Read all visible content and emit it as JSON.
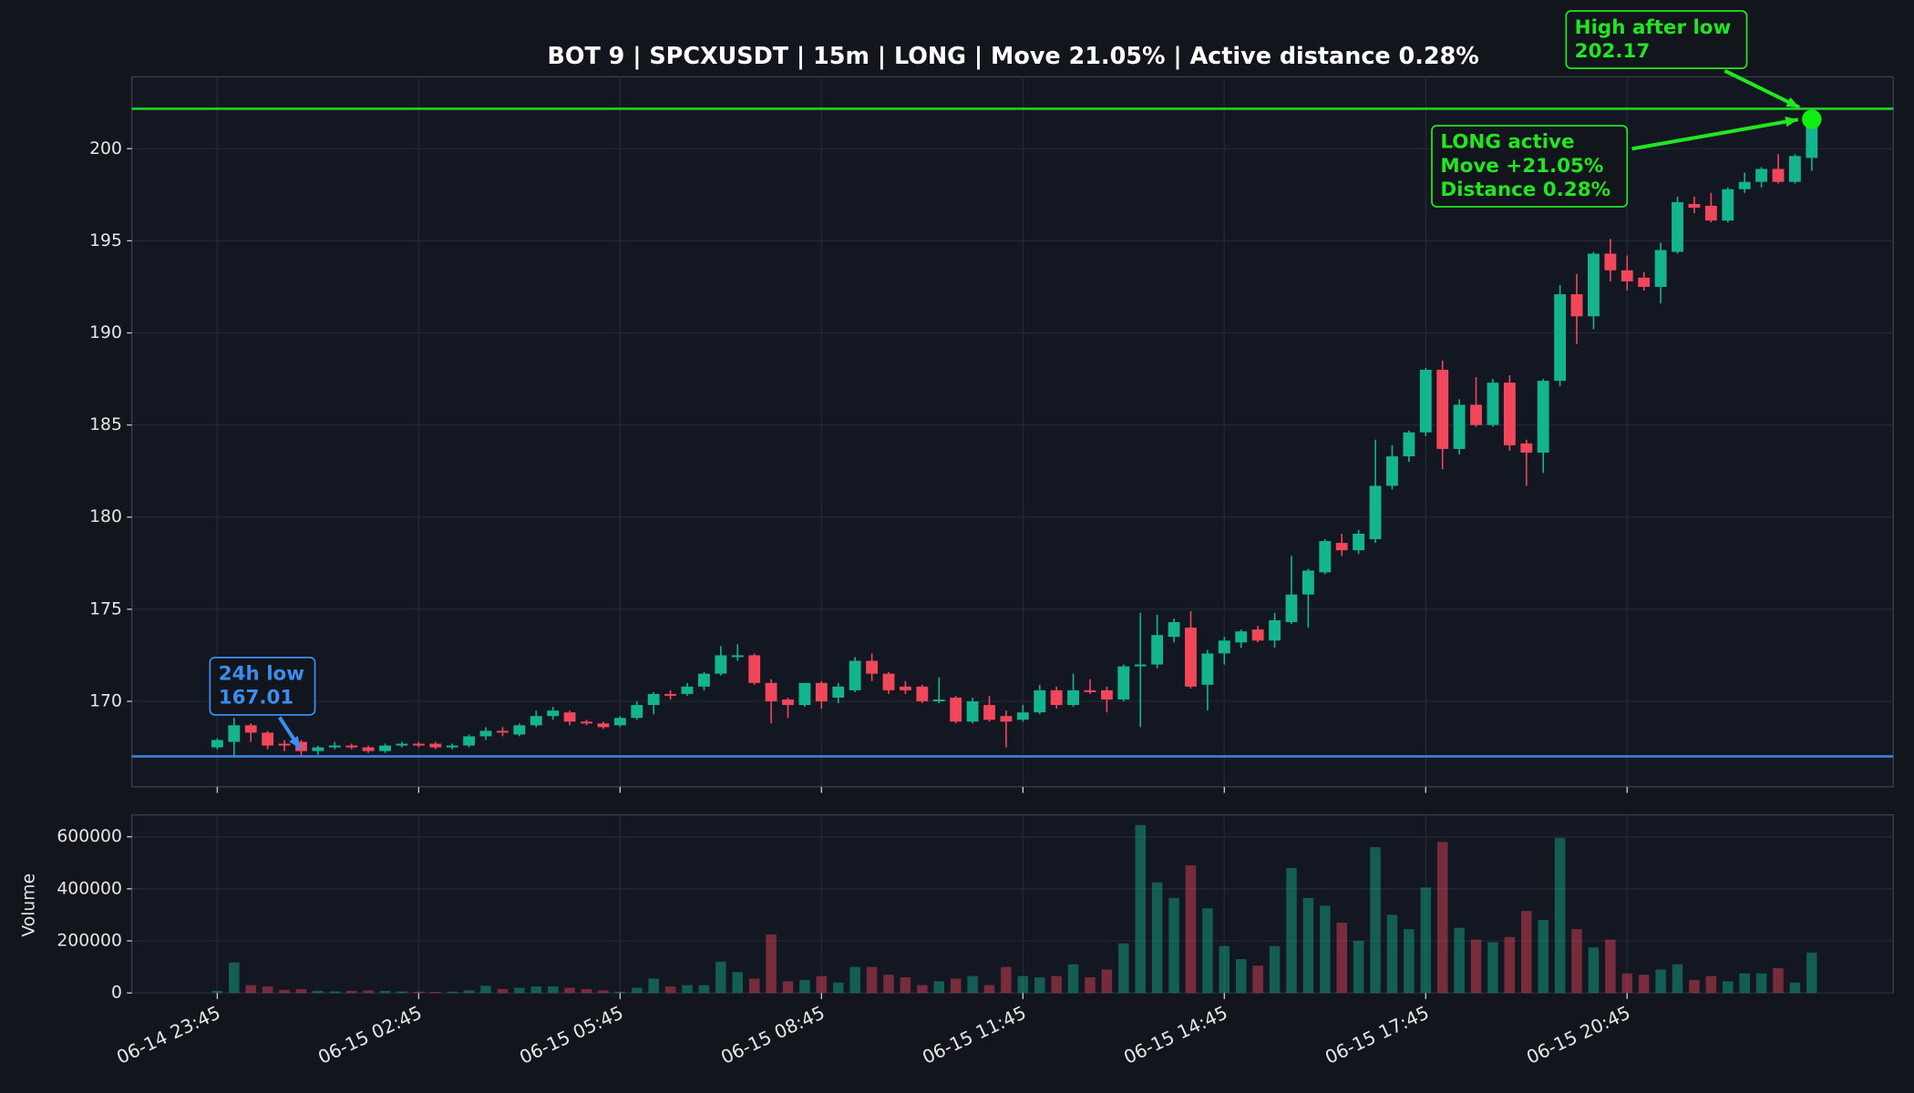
{
  "chart_data": {
    "type": "candlestick",
    "title": "BOT 9 | SPCXUSDT | 15m | LONG | Move 21.05% | Active distance 0.28%",
    "categories": [
      "06-14 23:45",
      null,
      null,
      null,
      null,
      null,
      null,
      null,
      null,
      null,
      null,
      null,
      "06-15 02:45",
      null,
      null,
      null,
      null,
      null,
      null,
      null,
      null,
      null,
      null,
      null,
      "06-15 05:45",
      null,
      null,
      null,
      null,
      null,
      null,
      null,
      null,
      null,
      null,
      null,
      "06-15 08:45",
      null,
      null,
      null,
      null,
      null,
      null,
      null,
      null,
      null,
      null,
      null,
      "06-15 11:45",
      null,
      null,
      null,
      null,
      null,
      null,
      null,
      null,
      null,
      null,
      null,
      "06-15 14:45",
      null,
      null,
      null,
      null,
      null,
      null,
      null,
      null,
      null,
      null,
      null,
      "06-15 17:45",
      null,
      null,
      null,
      null,
      null,
      null,
      null,
      null,
      null,
      null,
      null,
      "06-15 20:45",
      null,
      null,
      null,
      null,
      null,
      null,
      null,
      null,
      null,
      null,
      null
    ],
    "open": [
      167.5,
      167.8,
      168.7,
      168.3,
      167.7,
      167.8,
      167.3,
      167.5,
      167.6,
      167.5,
      167.3,
      167.6,
      167.7,
      167.7,
      167.5,
      167.6,
      168.1,
      168.4,
      168.2,
      168.7,
      169.2,
      169.4,
      168.9,
      168.8,
      168.7,
      169.1,
      169.8,
      170.4,
      170.4,
      170.8,
      171.5,
      172.4,
      172.5,
      171.0,
      170.1,
      169.8,
      171.0,
      170.2,
      170.6,
      172.2,
      171.5,
      170.8,
      170.8,
      170.0,
      170.2,
      168.9,
      169.8,
      169.2,
      169.0,
      169.4,
      170.6,
      169.8,
      170.6,
      170.6,
      170.1,
      171.9,
      172.0,
      173.5,
      174.0,
      170.9,
      172.6,
      173.2,
      173.9,
      173.3,
      174.3,
      175.8,
      177.0,
      178.6,
      178.2,
      178.8,
      181.7,
      183.3,
      184.6,
      188.0,
      183.7,
      186.1,
      185.0,
      187.3,
      184.0,
      183.5,
      187.4,
      192.1,
      190.9,
      194.3,
      193.4,
      193.0,
      192.5,
      194.4,
      197.0,
      196.9,
      196.1,
      197.8,
      198.2,
      198.9,
      198.2,
      199.5
    ],
    "high": [
      168.0,
      169.1,
      168.8,
      168.4,
      167.9,
      167.9,
      167.6,
      167.8,
      167.7,
      167.6,
      167.7,
      167.8,
      167.8,
      167.8,
      167.7,
      168.2,
      168.6,
      168.6,
      168.8,
      169.5,
      169.7,
      169.5,
      169.0,
      168.9,
      169.2,
      170.0,
      170.5,
      170.6,
      171.0,
      171.6,
      173.0,
      173.1,
      172.6,
      171.2,
      170.2,
      171.0,
      171.1,
      171.0,
      172.4,
      172.6,
      171.6,
      171.1,
      170.9,
      171.3,
      170.3,
      170.2,
      170.3,
      169.5,
      169.8,
      170.9,
      170.8,
      171.5,
      171.2,
      170.8,
      172.0,
      174.8,
      174.7,
      174.5,
      174.9,
      172.8,
      173.5,
      173.9,
      174.1,
      174.8,
      177.9,
      177.2,
      178.8,
      179.1,
      179.3,
      184.2,
      183.9,
      184.7,
      188.1,
      188.5,
      186.4,
      187.6,
      187.5,
      187.7,
      184.2,
      187.5,
      192.6,
      193.2,
      194.4,
      195.1,
      194.2,
      193.3,
      194.9,
      197.4,
      197.4,
      197.6,
      197.9,
      198.7,
      199.0,
      199.7,
      199.7,
      202.17
    ],
    "low": [
      167.4,
      167.0,
      167.8,
      167.4,
      167.3,
      167.01,
      167.1,
      167.4,
      167.4,
      167.2,
      167.2,
      167.5,
      167.5,
      167.4,
      167.4,
      167.5,
      167.9,
      168.1,
      168.1,
      168.6,
      169.0,
      168.7,
      168.7,
      168.5,
      168.6,
      169.0,
      169.3,
      170.1,
      170.3,
      170.6,
      171.4,
      172.2,
      170.9,
      168.8,
      169.1,
      169.7,
      169.6,
      169.9,
      170.5,
      171.1,
      170.4,
      170.4,
      169.9,
      169.9,
      168.8,
      168.8,
      168.9,
      167.5,
      168.9,
      169.3,
      169.6,
      169.7,
      170.4,
      169.4,
      170.0,
      168.6,
      171.8,
      173.2,
      170.7,
      169.5,
      172.0,
      172.9,
      173.2,
      172.9,
      174.2,
      174.0,
      176.9,
      177.9,
      178.0,
      178.6,
      181.5,
      183.0,
      184.4,
      182.6,
      183.4,
      184.9,
      184.9,
      183.6,
      181.7,
      182.4,
      187.1,
      189.4,
      190.2,
      192.8,
      192.3,
      192.3,
      191.6,
      194.3,
      196.5,
      196.0,
      196.0,
      197.6,
      197.9,
      198.1,
      198.1,
      198.8
    ],
    "close": [
      167.9,
      168.7,
      168.3,
      167.6,
      167.6,
      167.3,
      167.5,
      167.6,
      167.5,
      167.3,
      167.6,
      167.7,
      167.6,
      167.5,
      167.6,
      168.1,
      168.4,
      168.3,
      168.7,
      169.2,
      169.5,
      168.9,
      168.8,
      168.6,
      169.1,
      169.8,
      170.4,
      170.3,
      170.8,
      171.5,
      172.5,
      172.5,
      171.0,
      170.0,
      169.8,
      171.0,
      170.0,
      170.8,
      172.2,
      171.5,
      170.6,
      170.6,
      170.0,
      170.1,
      168.9,
      170.0,
      169.0,
      168.9,
      169.4,
      170.6,
      169.8,
      170.6,
      170.5,
      170.1,
      171.9,
      172.0,
      173.6,
      174.3,
      170.8,
      172.6,
      173.3,
      173.8,
      173.3,
      174.4,
      175.8,
      177.1,
      178.7,
      178.2,
      179.1,
      181.7,
      183.3,
      184.6,
      188.0,
      183.7,
      186.1,
      185.0,
      187.3,
      183.9,
      183.5,
      187.4,
      192.1,
      190.9,
      194.3,
      193.4,
      192.8,
      192.5,
      194.5,
      197.1,
      196.8,
      196.1,
      197.8,
      198.2,
      198.9,
      198.2,
      199.6,
      201.6
    ],
    "volume": [
      8000,
      117000,
      30000,
      25000,
      12000,
      15000,
      8000,
      6000,
      8000,
      10000,
      8000,
      6000,
      5000,
      4000,
      5000,
      10000,
      28000,
      15000,
      20000,
      25000,
      25000,
      20000,
      15000,
      10000,
      5000,
      20000,
      55000,
      25000,
      30000,
      30000,
      120000,
      80000,
      55000,
      225000,
      45000,
      50000,
      65000,
      40000,
      100000,
      100000,
      70000,
      60000,
      30000,
      45000,
      55000,
      65000,
      30000,
      100000,
      65000,
      60000,
      65000,
      110000,
      60000,
      90000,
      190000,
      645000,
      425000,
      365000,
      490000,
      325000,
      180000,
      130000,
      105000,
      180000,
      480000,
      365000,
      335000,
      270000,
      200000,
      560000,
      300000,
      245000,
      405000,
      580000,
      250000,
      205000,
      195000,
      215000,
      315000,
      280000,
      595000,
      245000,
      175000,
      205000,
      75000,
      70000,
      90000,
      110000,
      50000,
      65000,
      45000,
      75000,
      75000,
      95000,
      40000,
      155000
    ],
    "up_color": "#13b48e",
    "down_color": "#f2475b",
    "ylim": [
      165.36,
      203.9
    ],
    "yticks": [
      170,
      175,
      180,
      185,
      190,
      195,
      200
    ],
    "volume_ylabel": "Volume",
    "volume_ylim": [
      0,
      684000
    ],
    "volume_yticks": [
      0,
      200000,
      400000,
      600000
    ],
    "grid": true,
    "low_line": {
      "value": 167.01,
      "color": "#3b82e0"
    },
    "high_line": {
      "value": 202.17,
      "color": "#22cc22"
    },
    "annotations": [
      {
        "lines": [
          "24h low",
          "167.01"
        ],
        "color": "#3d8cf0"
      },
      {
        "lines": [
          "High after low",
          "202.17"
        ],
        "color": "#22e622"
      },
      {
        "lines": [
          "LONG active",
          "Move +21.05%",
          "Distance 0.28%"
        ],
        "color": "#22e622"
      }
    ]
  }
}
